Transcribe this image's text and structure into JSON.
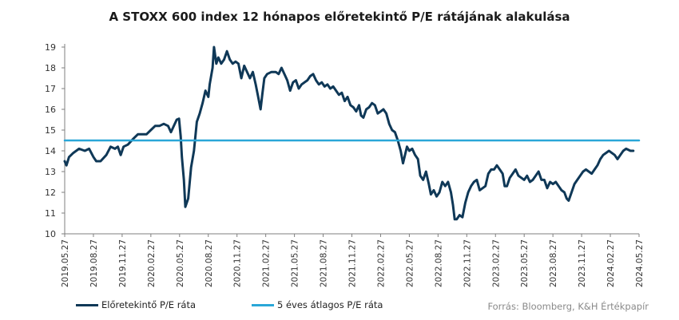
{
  "chart_data": {
    "type": "line",
    "title": "A STOXX 600 index  12 hónapos előretekintő P/E rátájának alakulása",
    "source": "Forrás: Bloomberg,  K&H Értékpapír",
    "ylim": [
      10,
      19
    ],
    "yticks": [
      10,
      11,
      12,
      13,
      14,
      15,
      16,
      17,
      18,
      19
    ],
    "xticks": [
      "2019.05.27",
      "2019.08.27",
      "2019.11.27",
      "2020.02.27",
      "2020.05.27",
      "2020.08.27",
      "2020.11.27",
      "2021.02.27",
      "2021.05.27",
      "2021.08.27",
      "2021.11.27",
      "2022.02.27",
      "2022.05.27",
      "2022.08.27",
      "2022.11.27",
      "2023.02.27",
      "2023.05.27",
      "2023.08.27",
      "2023.11.27",
      "2024.02.27",
      "2024.05.27"
    ],
    "colors": {
      "pe": "#0f3857",
      "avg": "#2aa7d8",
      "axis": "#7f7f7f"
    },
    "series": [
      {
        "name": "Előretekintő P/E ráta",
        "key": "pe",
        "points": [
          [
            0,
            13.5
          ],
          [
            0.06,
            13.3
          ],
          [
            0.15,
            13.7
          ],
          [
            0.3,
            13.9
          ],
          [
            0.5,
            14.1
          ],
          [
            0.7,
            14.0
          ],
          [
            0.85,
            14.1
          ],
          [
            1.0,
            13.7
          ],
          [
            1.1,
            13.5
          ],
          [
            1.25,
            13.5
          ],
          [
            1.45,
            13.8
          ],
          [
            1.6,
            14.2
          ],
          [
            1.75,
            14.1
          ],
          [
            1.85,
            14.2
          ],
          [
            1.95,
            13.8
          ],
          [
            2.05,
            14.2
          ],
          [
            2.2,
            14.3
          ],
          [
            2.4,
            14.6
          ],
          [
            2.55,
            14.8
          ],
          [
            2.7,
            14.8
          ],
          [
            2.85,
            14.8
          ],
          [
            3.0,
            15.0
          ],
          [
            3.15,
            15.2
          ],
          [
            3.3,
            15.2
          ],
          [
            3.45,
            15.3
          ],
          [
            3.6,
            15.2
          ],
          [
            3.7,
            14.9
          ],
          [
            3.8,
            15.2
          ],
          [
            3.9,
            15.5
          ],
          [
            3.98,
            15.55
          ],
          [
            4.04,
            14.7
          ],
          [
            4.08,
            13.7
          ],
          [
            4.15,
            12.6
          ],
          [
            4.2,
            11.3
          ],
          [
            4.3,
            11.7
          ],
          [
            4.4,
            13.2
          ],
          [
            4.5,
            14.0
          ],
          [
            4.6,
            15.4
          ],
          [
            4.7,
            15.8
          ],
          [
            4.8,
            16.3
          ],
          [
            4.9,
            16.9
          ],
          [
            5.0,
            16.6
          ],
          [
            5.05,
            17.2
          ],
          [
            5.15,
            18.0
          ],
          [
            5.2,
            19.0
          ],
          [
            5.28,
            18.2
          ],
          [
            5.35,
            18.5
          ],
          [
            5.45,
            18.2
          ],
          [
            5.55,
            18.4
          ],
          [
            5.65,
            18.8
          ],
          [
            5.75,
            18.4
          ],
          [
            5.85,
            18.2
          ],
          [
            5.95,
            18.3
          ],
          [
            6.05,
            18.2
          ],
          [
            6.15,
            17.5
          ],
          [
            6.25,
            18.1
          ],
          [
            6.35,
            17.8
          ],
          [
            6.45,
            17.5
          ],
          [
            6.55,
            17.8
          ],
          [
            6.65,
            17.2
          ],
          [
            6.75,
            16.5
          ],
          [
            6.82,
            16.0
          ],
          [
            6.88,
            16.7
          ],
          [
            6.95,
            17.5
          ],
          [
            7.05,
            17.7
          ],
          [
            7.2,
            17.8
          ],
          [
            7.35,
            17.8
          ],
          [
            7.45,
            17.7
          ],
          [
            7.55,
            18.0
          ],
          [
            7.65,
            17.7
          ],
          [
            7.75,
            17.4
          ],
          [
            7.85,
            16.9
          ],
          [
            7.95,
            17.3
          ],
          [
            8.05,
            17.4
          ],
          [
            8.15,
            17.0
          ],
          [
            8.25,
            17.2
          ],
          [
            8.35,
            17.3
          ],
          [
            8.45,
            17.4
          ],
          [
            8.55,
            17.6
          ],
          [
            8.65,
            17.7
          ],
          [
            8.75,
            17.4
          ],
          [
            8.85,
            17.2
          ],
          [
            8.95,
            17.3
          ],
          [
            9.05,
            17.1
          ],
          [
            9.15,
            17.2
          ],
          [
            9.25,
            17.0
          ],
          [
            9.35,
            17.1
          ],
          [
            9.45,
            16.9
          ],
          [
            9.55,
            16.7
          ],
          [
            9.65,
            16.8
          ],
          [
            9.75,
            16.4
          ],
          [
            9.85,
            16.6
          ],
          [
            9.95,
            16.2
          ],
          [
            10.05,
            16.1
          ],
          [
            10.15,
            15.9
          ],
          [
            10.25,
            16.2
          ],
          [
            10.32,
            15.7
          ],
          [
            10.4,
            15.6
          ],
          [
            10.5,
            16.0
          ],
          [
            10.6,
            16.1
          ],
          [
            10.7,
            16.3
          ],
          [
            10.8,
            16.2
          ],
          [
            10.9,
            15.8
          ],
          [
            11.0,
            15.9
          ],
          [
            11.1,
            16.0
          ],
          [
            11.2,
            15.8
          ],
          [
            11.3,
            15.3
          ],
          [
            11.4,
            15.0
          ],
          [
            11.5,
            14.9
          ],
          [
            11.6,
            14.5
          ],
          [
            11.7,
            14.0
          ],
          [
            11.78,
            13.4
          ],
          [
            11.85,
            13.8
          ],
          [
            11.92,
            14.2
          ],
          [
            12.0,
            14.0
          ],
          [
            12.1,
            14.1
          ],
          [
            12.2,
            13.8
          ],
          [
            12.3,
            13.6
          ],
          [
            12.38,
            12.8
          ],
          [
            12.48,
            12.6
          ],
          [
            12.58,
            13.0
          ],
          [
            12.68,
            12.4
          ],
          [
            12.75,
            11.9
          ],
          [
            12.85,
            12.1
          ],
          [
            12.95,
            11.8
          ],
          [
            13.05,
            12.0
          ],
          [
            13.15,
            12.5
          ],
          [
            13.25,
            12.3
          ],
          [
            13.35,
            12.5
          ],
          [
            13.45,
            12.0
          ],
          [
            13.52,
            11.4
          ],
          [
            13.58,
            10.7
          ],
          [
            13.65,
            10.7
          ],
          [
            13.75,
            10.9
          ],
          [
            13.85,
            10.8
          ],
          [
            13.95,
            11.5
          ],
          [
            14.05,
            12.0
          ],
          [
            14.15,
            12.3
          ],
          [
            14.25,
            12.5
          ],
          [
            14.35,
            12.6
          ],
          [
            14.45,
            12.1
          ],
          [
            14.55,
            12.2
          ],
          [
            14.65,
            12.3
          ],
          [
            14.75,
            12.9
          ],
          [
            14.85,
            13.1
          ],
          [
            14.95,
            13.1
          ],
          [
            15.05,
            13.3
          ],
          [
            15.15,
            13.1
          ],
          [
            15.25,
            12.9
          ],
          [
            15.32,
            12.3
          ],
          [
            15.4,
            12.3
          ],
          [
            15.5,
            12.7
          ],
          [
            15.6,
            12.9
          ],
          [
            15.7,
            13.1
          ],
          [
            15.8,
            12.8
          ],
          [
            15.9,
            12.7
          ],
          [
            16.0,
            12.6
          ],
          [
            16.1,
            12.8
          ],
          [
            16.2,
            12.5
          ],
          [
            16.3,
            12.6
          ],
          [
            16.4,
            12.8
          ],
          [
            16.5,
            13.0
          ],
          [
            16.6,
            12.6
          ],
          [
            16.7,
            12.6
          ],
          [
            16.8,
            12.2
          ],
          [
            16.9,
            12.5
          ],
          [
            17.0,
            12.4
          ],
          [
            17.1,
            12.5
          ],
          [
            17.2,
            12.3
          ],
          [
            17.3,
            12.1
          ],
          [
            17.4,
            12.0
          ],
          [
            17.48,
            11.7
          ],
          [
            17.55,
            11.6
          ],
          [
            17.65,
            12.0
          ],
          [
            17.75,
            12.4
          ],
          [
            17.85,
            12.6
          ],
          [
            17.95,
            12.8
          ],
          [
            18.05,
            13.0
          ],
          [
            18.15,
            13.1
          ],
          [
            18.25,
            13.0
          ],
          [
            18.35,
            12.9
          ],
          [
            18.45,
            13.1
          ],
          [
            18.55,
            13.3
          ],
          [
            18.65,
            13.6
          ],
          [
            18.75,
            13.8
          ],
          [
            18.85,
            13.9
          ],
          [
            18.95,
            14.0
          ],
          [
            19.05,
            13.9
          ],
          [
            19.15,
            13.8
          ],
          [
            19.25,
            13.6
          ],
          [
            19.35,
            13.8
          ],
          [
            19.45,
            14.0
          ],
          [
            19.55,
            14.1
          ],
          [
            19.7,
            14.0
          ],
          [
            19.8,
            14.0
          ]
        ]
      },
      {
        "name": "5 éves átlagos P/E ráta",
        "key": "avg",
        "points": [
          [
            0,
            14.5
          ],
          [
            20,
            14.5
          ]
        ]
      }
    ]
  }
}
